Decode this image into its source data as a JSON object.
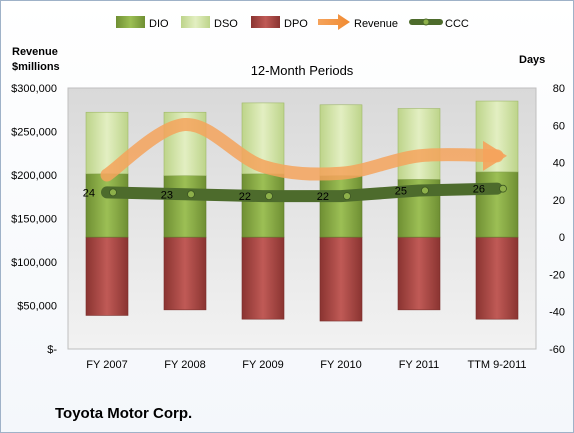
{
  "chart_data": {
    "type": "bar",
    "title": "12-Month Periods",
    "company": "Toyota Motor Corp.",
    "left_axis_label": [
      "Revenue",
      "$millions"
    ],
    "right_axis_label": "Days",
    "categories": [
      "FY 2007",
      "FY 2008",
      "FY 2009",
      "FY 2010",
      "FY 2011",
      "TTM 9-2011"
    ],
    "left_axis": {
      "min": 0,
      "max": 300000,
      "step": 50000,
      "tick_labels": [
        "$-",
        "$50,000",
        "$100,000",
        "$150,000",
        "$200,000",
        "$250,000",
        "$300,000"
      ]
    },
    "right_axis": {
      "min": -60,
      "max": 80,
      "step": 20,
      "tick_labels": [
        "-60",
        "-40",
        "-20",
        "0",
        "20",
        "40",
        "60",
        "80"
      ]
    },
    "series": [
      {
        "name": "DIO",
        "axis": "right",
        "kind": "stacked-bar",
        "color": "#8db04a",
        "values": [
          34,
          33,
          34,
          33,
          31,
          35
        ]
      },
      {
        "name": "DSO",
        "axis": "right",
        "kind": "stacked-bar",
        "color": "#d5e6a6",
        "values": [
          33,
          34,
          38,
          38,
          38,
          38
        ]
      },
      {
        "name": "DPO",
        "axis": "right",
        "kind": "negative-bar",
        "color": "#b04a47",
        "values": [
          -42,
          -39,
          -44,
          -45,
          -39,
          -44
        ]
      },
      {
        "name": "Revenue",
        "axis": "left",
        "kind": "line",
        "color": "#f5a35c",
        "values": [
          200000,
          258000,
          210000,
          202000,
          222000,
          222000
        ]
      },
      {
        "name": "CCC",
        "axis": "right",
        "kind": "line",
        "color": "#4d6b2c",
        "values": [
          24,
          23,
          22,
          22,
          25,
          26
        ]
      }
    ],
    "grid": false,
    "legend_position": "top"
  }
}
